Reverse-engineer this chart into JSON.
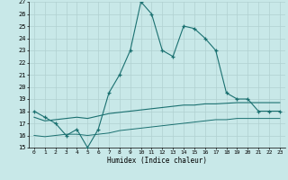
{
  "xlabel": "Humidex (Indice chaleur)",
  "background_color": "#c8e8e8",
  "grid_color": "#b0d0d0",
  "line_color": "#1a7070",
  "xlim": [
    -0.5,
    23.5
  ],
  "ylim": [
    15,
    27
  ],
  "yticks": [
    15,
    16,
    17,
    18,
    19,
    20,
    21,
    22,
    23,
    24,
    25,
    26,
    27
  ],
  "xticks": [
    0,
    1,
    2,
    3,
    4,
    5,
    6,
    7,
    8,
    9,
    10,
    11,
    12,
    13,
    14,
    15,
    16,
    17,
    18,
    19,
    20,
    21,
    22,
    23
  ],
  "main_x": [
    0,
    1,
    2,
    3,
    4,
    5,
    6,
    7,
    8,
    9,
    10,
    11,
    12,
    13,
    14,
    15,
    16,
    17,
    18,
    19,
    20,
    21,
    22,
    23
  ],
  "main_y": [
    18,
    17.5,
    17,
    16,
    16.5,
    15,
    16.5,
    19.5,
    21,
    23,
    27,
    26,
    23,
    22.5,
    25,
    24.8,
    24,
    23,
    19.5,
    19,
    19,
    18,
    18,
    18
  ],
  "mid_x": [
    0,
    1,
    2,
    3,
    4,
    5,
    6,
    7,
    8,
    9,
    10,
    11,
    12,
    13,
    14,
    15,
    16,
    17,
    18,
    19,
    20,
    21,
    22,
    23
  ],
  "mid_y": [
    17.5,
    17.2,
    17.3,
    17.4,
    17.5,
    17.4,
    17.6,
    17.8,
    17.9,
    18.0,
    18.1,
    18.2,
    18.3,
    18.4,
    18.5,
    18.5,
    18.6,
    18.6,
    18.65,
    18.7,
    18.7,
    18.7,
    18.7,
    18.7
  ],
  "low_x": [
    0,
    1,
    2,
    3,
    4,
    5,
    6,
    7,
    8,
    9,
    10,
    11,
    12,
    13,
    14,
    15,
    16,
    17,
    18,
    19,
    20,
    21,
    22,
    23
  ],
  "low_y": [
    16.0,
    15.9,
    16.0,
    16.1,
    16.1,
    16.0,
    16.1,
    16.2,
    16.4,
    16.5,
    16.6,
    16.7,
    16.8,
    16.9,
    17.0,
    17.1,
    17.2,
    17.3,
    17.3,
    17.4,
    17.4,
    17.4,
    17.4,
    17.4
  ]
}
